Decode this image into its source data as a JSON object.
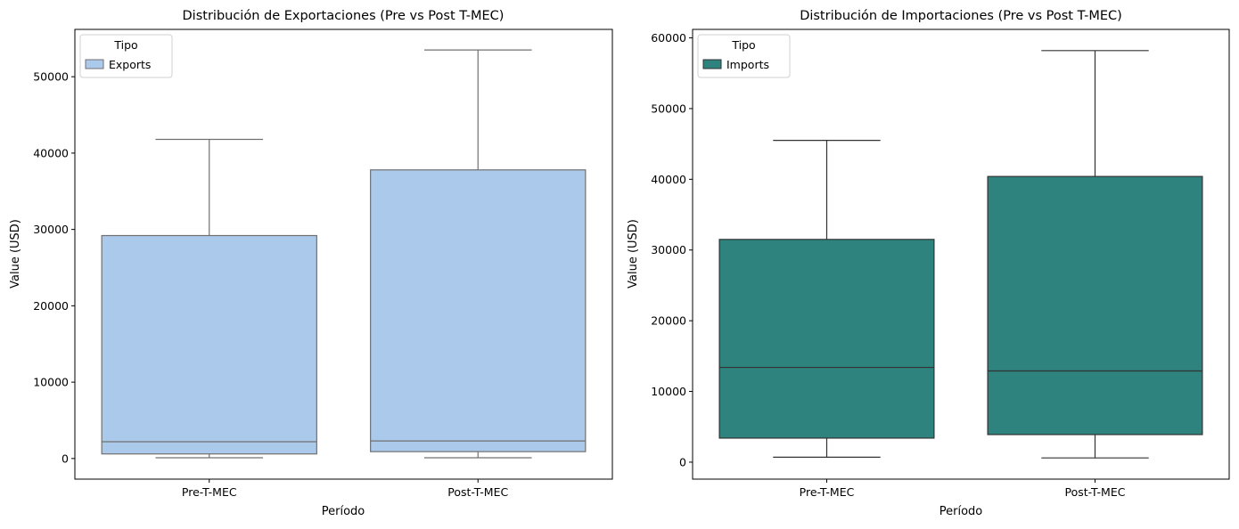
{
  "chart_data": [
    {
      "type": "box",
      "title": "Distribución de Exportaciones (Pre vs Post T-MEC)",
      "xlabel": "Período",
      "ylabel": "Value (USD)",
      "categories": [
        "Pre-T-MEC",
        "Post-T-MEC"
      ],
      "ylim": [
        -2700,
        56200
      ],
      "yticks": [
        0,
        10000,
        20000,
        30000,
        40000,
        50000
      ],
      "legend": {
        "title": "Tipo",
        "entries": [
          "Exports"
        ],
        "placement": "top-left"
      },
      "box_color": "#abc9eb",
      "line_color": "#707070",
      "series": [
        {
          "name": "Exports",
          "boxes": [
            {
              "category": "Pre-T-MEC",
              "whisker_low": 100,
              "q1": 600,
              "median": 2200,
              "q3": 29200,
              "whisker_high": 41800
            },
            {
              "category": "Post-T-MEC",
              "whisker_low": 100,
              "q1": 900,
              "median": 2300,
              "q3": 37800,
              "whisker_high": 53500
            }
          ]
        }
      ]
    },
    {
      "type": "box",
      "title": "Distribución de Importaciones (Pre vs Post T-MEC)",
      "xlabel": "Período",
      "ylabel": "Value (USD)",
      "categories": [
        "Pre-T-MEC",
        "Post-T-MEC"
      ],
      "ylim": [
        -2400,
        61200
      ],
      "yticks": [
        0,
        10000,
        20000,
        30000,
        40000,
        50000,
        60000
      ],
      "legend": {
        "title": "Tipo",
        "entries": [
          "Imports"
        ],
        "placement": "top-left"
      },
      "box_color": "#2e837e",
      "line_color": "#333333",
      "series": [
        {
          "name": "Imports",
          "boxes": [
            {
              "category": "Pre-T-MEC",
              "whisker_low": 700,
              "q1": 3400,
              "median": 13400,
              "q3": 31500,
              "whisker_high": 45500
            },
            {
              "category": "Post-T-MEC",
              "whisker_low": 600,
              "q1": 3900,
              "median": 12900,
              "q3": 40400,
              "whisker_high": 58200
            }
          ]
        }
      ]
    }
  ]
}
